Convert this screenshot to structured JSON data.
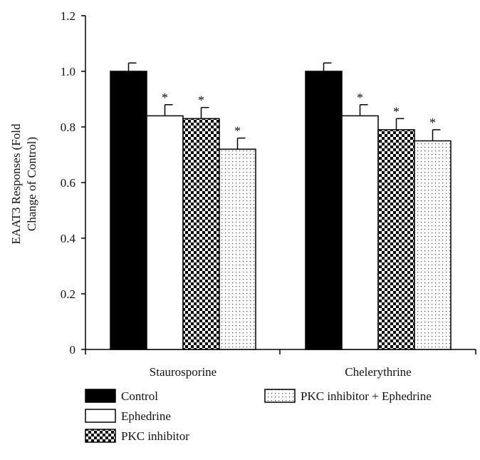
{
  "chart_data": {
    "type": "bar",
    "title": "",
    "xlabel": "",
    "ylabel_lines": [
      "EAAT3 Responses (Fold",
      "Change of Control)"
    ],
    "ylim": [
      0,
      1.2
    ],
    "yticks": [
      "0",
      "0.2",
      "0.4",
      "0.6",
      "0.8",
      "1.0",
      "1.2"
    ],
    "categories": [
      "Staurosporine",
      "Chelerythrine"
    ],
    "series": [
      {
        "name": "Control",
        "pattern": "solid",
        "values": [
          1.0,
          1.0
        ],
        "errors": [
          0.03,
          0.03
        ],
        "significance": [
          "",
          ""
        ]
      },
      {
        "name": "Ephedrine",
        "pattern": "empty",
        "values": [
          0.84,
          0.84
        ],
        "errors": [
          0.04,
          0.04
        ],
        "significance": [
          "*",
          "*"
        ]
      },
      {
        "name": "PKC inhibitor",
        "pattern": "checker",
        "values": [
          0.83,
          0.79
        ],
        "errors": [
          0.04,
          0.04
        ],
        "significance": [
          "*",
          "*"
        ]
      },
      {
        "name": "PKC inhibitor + Ephedrine",
        "pattern": "dots",
        "values": [
          0.72,
          0.75
        ],
        "errors": [
          0.04,
          0.04
        ],
        "significance": [
          "*",
          "*"
        ]
      }
    ],
    "grid": false,
    "legend_position": "bottom",
    "colors": {
      "bar_fill": "#000000",
      "stroke": "#000000",
      "background": "#ffffff"
    }
  }
}
